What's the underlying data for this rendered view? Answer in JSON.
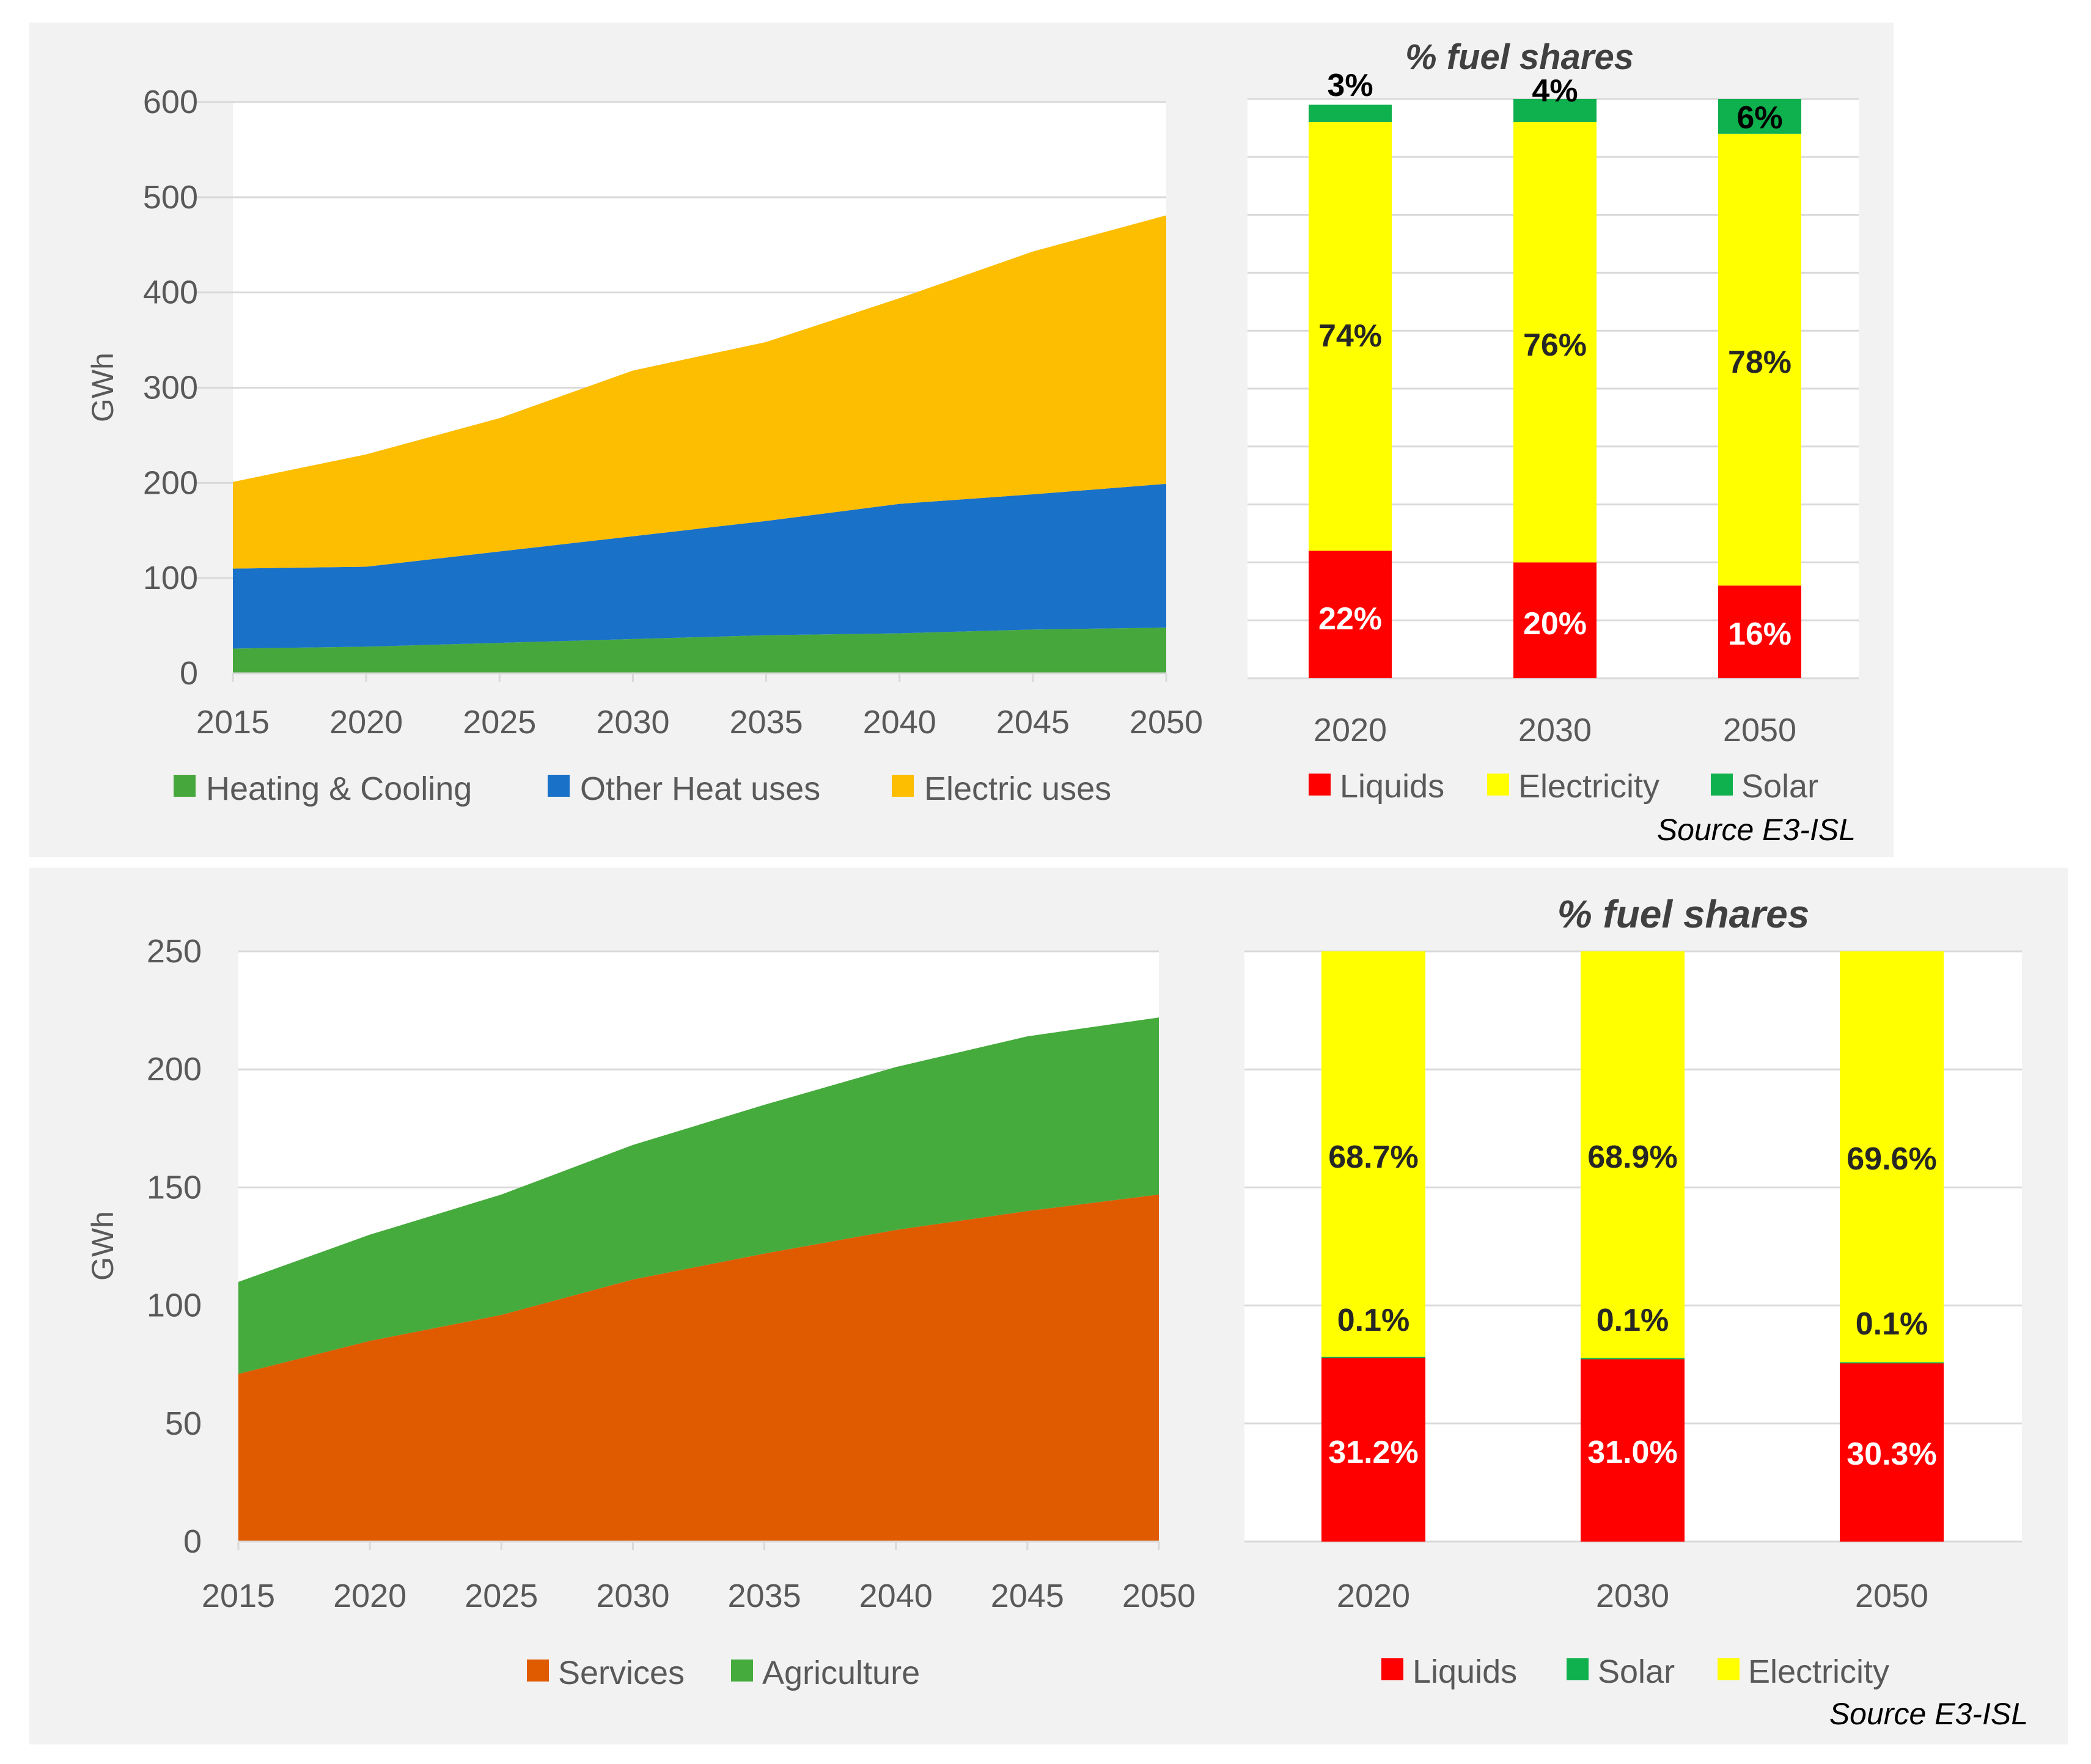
{
  "colors": {
    "heating_cooling": "#46a83c",
    "other_heat": "#1971c8",
    "electric_uses": "#fdbd00",
    "services": "#e05a00",
    "agriculture": "#45ab3c",
    "liquids": "#ff0000",
    "electricity": "#ffff00",
    "solar": "#0fb04e",
    "panel_bg": "#f2f2f2",
    "grid": "#d9d9d9"
  },
  "chart_data": [
    {
      "id": "top_area",
      "type": "area",
      "stacked": true,
      "ylabel": "GWh",
      "ylim": [
        0,
        600
      ],
      "yticks": [
        "0",
        "100",
        "200",
        "300",
        "400",
        "500",
        "600"
      ],
      "categories": [
        "2015",
        "2020",
        "2025",
        "2030",
        "2035",
        "2040",
        "2045",
        "2050"
      ],
      "series": [
        {
          "name": "Heating & Cooling",
          "color": "#46a83c",
          "values": [
            26,
            28,
            32,
            36,
            40,
            42,
            46,
            48
          ]
        },
        {
          "name": "Other Heat uses",
          "color": "#1971c8",
          "values": [
            84,
            84,
            96,
            108,
            120,
            136,
            142,
            151
          ]
        },
        {
          "name": "Electric uses",
          "color": "#fdbd00",
          "values": [
            91,
            118,
            140,
            174,
            188,
            216,
            255,
            282
          ]
        }
      ],
      "legend": "bottom"
    },
    {
      "id": "top_bar",
      "type": "bar",
      "stacked": true,
      "title": "% fuel shares",
      "source": "Source E3-ISL",
      "categories": [
        "2020",
        "2030",
        "2050"
      ],
      "series": [
        {
          "name": "Liquids",
          "color": "#ff0000",
          "values": [
            22,
            20,
            16
          ],
          "labels": [
            "22%",
            "20%",
            "16%"
          ],
          "label_color": "#ffffff"
        },
        {
          "name": "Electricity",
          "color": "#ffff00",
          "values": [
            74,
            76,
            78
          ],
          "labels": [
            "74%",
            "76%",
            "78%"
          ],
          "label_color": "#262626"
        },
        {
          "name": "Solar",
          "color": "#0fb04e",
          "values": [
            3,
            4,
            6
          ],
          "labels": [
            "3%",
            "4%",
            "6%"
          ],
          "label_color": "#000000"
        }
      ],
      "legend_order": [
        "Liquids",
        "Electricity",
        "Solar"
      ]
    },
    {
      "id": "bottom_area",
      "type": "area",
      "stacked": true,
      "ylabel": "GWh",
      "ylim": [
        0,
        250
      ],
      "yticks": [
        "0",
        "50",
        "100",
        "150",
        "200",
        "250"
      ],
      "categories": [
        "2015",
        "2020",
        "2025",
        "2030",
        "2035",
        "2040",
        "2045",
        "2050"
      ],
      "series": [
        {
          "name": "Services",
          "color": "#e05a00",
          "values": [
            71,
            85,
            96,
            111,
            122,
            132,
            140,
            147
          ]
        },
        {
          "name": "Agriculture",
          "color": "#45ab3c",
          "values": [
            39,
            45,
            51,
            57,
            63,
            69,
            74,
            75
          ]
        }
      ],
      "legend": "bottom"
    },
    {
      "id": "bottom_bar",
      "type": "bar",
      "stacked": true,
      "title": "% fuel shares",
      "source": "Source E3-ISL",
      "categories": [
        "2020",
        "2030",
        "2050"
      ],
      "series": [
        {
          "name": "Liquids",
          "color": "#ff0000",
          "values": [
            31.2,
            31.0,
            30.3
          ],
          "labels": [
            "31.2%",
            "31.0%",
            "30.3%"
          ],
          "label_color": "#ffffff"
        },
        {
          "name": "Solar",
          "color": "#0fb04e",
          "values": [
            0.1,
            0.1,
            0.1
          ],
          "labels": [
            "0.1%",
            "0.1%",
            "0.1%"
          ],
          "label_color": "#262626"
        },
        {
          "name": "Electricity",
          "color": "#ffff00",
          "values": [
            68.7,
            68.9,
            69.6
          ],
          "labels": [
            "68.7%",
            "68.9%",
            "69.6%"
          ],
          "label_color": "#262626"
        }
      ],
      "legend_order": [
        "Liquids",
        "Solar",
        "Electricity"
      ]
    }
  ]
}
